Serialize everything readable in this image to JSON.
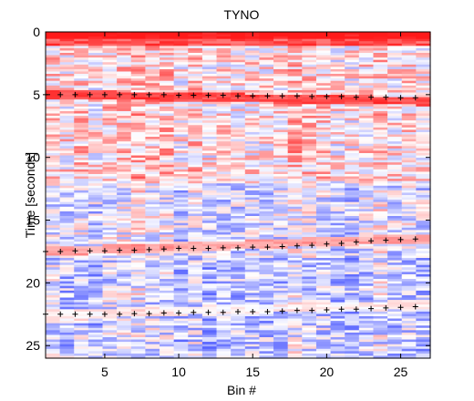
{
  "chart_data": {
    "type": "heatmap",
    "title": "TYNO",
    "xlabel": "Bin #",
    "ylabel": "Time [seconds]",
    "xlim": [
      1,
      27
    ],
    "ylim": [
      0,
      26
    ],
    "y_reversed": true,
    "xticks": [
      5,
      10,
      15,
      20,
      25
    ],
    "yticks": [
      0,
      5,
      10,
      15,
      20,
      25
    ],
    "colormap": [
      "#2e3dff",
      "#ffffff",
      "#ff1a1a"
    ],
    "grid": false,
    "rows": 140,
    "bins": 27,
    "bands": [
      {
        "t": 0.3,
        "value": 1.0
      },
      {
        "t": 5.0,
        "value": 0.75,
        "drift_per_bin": 0.02
      },
      {
        "t": 17.5,
        "value": 0.45,
        "drift_per_bin": -0.04
      },
      {
        "t": 22.5,
        "value": 0.15,
        "drift_per_bin": -0.03
      }
    ],
    "picks": [
      {
        "name": "pick-line-1",
        "x": [
          1,
          2,
          3,
          4,
          5,
          6,
          7,
          8,
          9,
          10,
          11,
          12,
          13,
          14,
          15,
          16,
          17,
          18,
          19,
          20,
          21,
          22,
          23,
          24,
          25,
          26
        ],
        "y": [
          5.0,
          5.0,
          5.0,
          5.0,
          5.0,
          5.0,
          5.0,
          5.0,
          5.0,
          5.05,
          5.05,
          5.05,
          5.05,
          5.1,
          5.1,
          5.1,
          5.1,
          5.1,
          5.15,
          5.15,
          5.15,
          5.2,
          5.2,
          5.2,
          5.25,
          5.25
        ]
      },
      {
        "name": "pick-line-2",
        "x": [
          1,
          2,
          3,
          4,
          5,
          6,
          7,
          8,
          9,
          10,
          11,
          12,
          13,
          14,
          15,
          16,
          17,
          18,
          19,
          20,
          21,
          22,
          23,
          24,
          25,
          26
        ],
        "y": [
          17.5,
          17.5,
          17.45,
          17.45,
          17.45,
          17.4,
          17.4,
          17.35,
          17.3,
          17.25,
          17.25,
          17.25,
          17.2,
          17.2,
          17.15,
          17.15,
          17.1,
          17.05,
          17.0,
          16.9,
          16.85,
          16.75,
          16.65,
          16.6,
          16.55,
          16.5
        ]
      },
      {
        "name": "pick-line-3",
        "x": [
          1,
          2,
          3,
          4,
          5,
          6,
          7,
          8,
          9,
          10,
          11,
          12,
          13,
          14,
          15,
          16,
          17,
          18,
          19,
          20,
          21,
          22,
          23,
          24,
          25,
          26
        ],
        "y": [
          22.5,
          22.5,
          22.5,
          22.5,
          22.5,
          22.5,
          22.45,
          22.45,
          22.4,
          22.4,
          22.35,
          22.35,
          22.35,
          22.3,
          22.3,
          22.3,
          22.25,
          22.2,
          22.2,
          22.15,
          22.1,
          22.1,
          22.05,
          22.0,
          21.95,
          21.9
        ]
      }
    ]
  }
}
